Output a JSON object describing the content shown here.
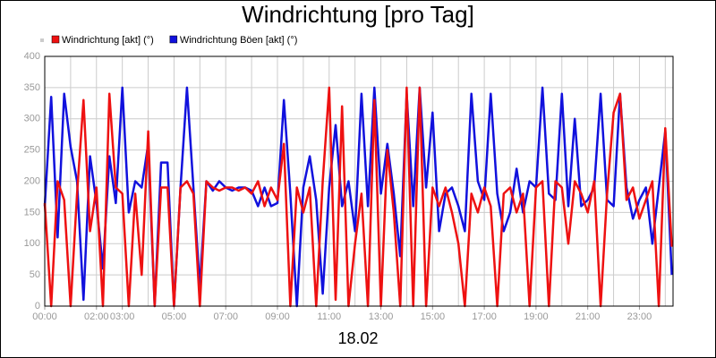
{
  "chart_data": {
    "type": "line",
    "title": "Windrichtung [pro Tag]",
    "xlabel": "18.02",
    "x": [
      0,
      0.25,
      0.5,
      0.75,
      1,
      1.25,
      1.5,
      1.75,
      2,
      2.25,
      2.5,
      2.75,
      3,
      3.25,
      3.5,
      3.75,
      4,
      4.25,
      4.5,
      4.75,
      5,
      5.25,
      5.5,
      5.75,
      6,
      6.25,
      6.5,
      6.75,
      7,
      7.25,
      7.5,
      7.75,
      8,
      8.25,
      8.5,
      8.75,
      9,
      9.25,
      9.5,
      9.75,
      10,
      10.25,
      10.5,
      10.75,
      11,
      11.25,
      11.5,
      11.75,
      12,
      12.25,
      12.5,
      12.75,
      13,
      13.25,
      13.5,
      13.75,
      14,
      14.25,
      14.5,
      14.75,
      15,
      15.25,
      15.5,
      15.75,
      16,
      16.25,
      16.5,
      16.75,
      17,
      17.25,
      17.5,
      17.75,
      18,
      18.25,
      18.5,
      18.75,
      19,
      19.25,
      19.5,
      19.75,
      20,
      20.25,
      20.5,
      20.75,
      21,
      21.25,
      21.5,
      21.75,
      22,
      22.25,
      22.5,
      22.75,
      23,
      23.25,
      23.5,
      23.75,
      24,
      24.25
    ],
    "series": [
      {
        "name": "Windrichtung [akt] (°)",
        "color": "#ee1111",
        "values": [
          165,
          0,
          200,
          170,
          0,
          180,
          330,
          120,
          190,
          0,
          340,
          190,
          180,
          0,
          180,
          50,
          280,
          0,
          190,
          190,
          0,
          190,
          200,
          180,
          0,
          200,
          190,
          185,
          190,
          190,
          185,
          190,
          180,
          200,
          160,
          190,
          170,
          260,
          0,
          190,
          150,
          190,
          0,
          200,
          350,
          10,
          320,
          0,
          100,
          180,
          0,
          330,
          0,
          250,
          150,
          0,
          350,
          0,
          350,
          0,
          190,
          160,
          190,
          150,
          100,
          0,
          180,
          150,
          190,
          160,
          0,
          180,
          190,
          150,
          180,
          0,
          190,
          200,
          0,
          200,
          190,
          100,
          200,
          180,
          150,
          200,
          0,
          180,
          310,
          340,
          170,
          190,
          140,
          170,
          200,
          0,
          285,
          95
        ]
      },
      {
        "name": "Windrichtung Böen [akt] (°)",
        "color": "#1111dd",
        "values": [
          160,
          335,
          110,
          340,
          255,
          200,
          10,
          240,
          165,
          60,
          240,
          165,
          350,
          150,
          200,
          190,
          260,
          0,
          230,
          230,
          0,
          190,
          350,
          190,
          30,
          200,
          185,
          200,
          190,
          185,
          190,
          190,
          185,
          160,
          190,
          160,
          165,
          330,
          180,
          0,
          190,
          240,
          170,
          20,
          190,
          290,
          160,
          200,
          120,
          340,
          160,
          350,
          180,
          260,
          180,
          80,
          340,
          160,
          350,
          190,
          310,
          120,
          180,
          190,
          160,
          120,
          340,
          200,
          170,
          340,
          180,
          120,
          150,
          220,
          150,
          200,
          190,
          350,
          180,
          170,
          340,
          160,
          300,
          160,
          170,
          190,
          340,
          170,
          160,
          340,
          190,
          140,
          170,
          190,
          100,
          190,
          280,
          50
        ]
      }
    ],
    "xlim": [
      0,
      24.3
    ],
    "xticks": [
      {
        "value": 0,
        "label": "00:00"
      },
      {
        "value": 2,
        "label": "02:00"
      },
      {
        "value": 3,
        "label": "03:00"
      },
      {
        "value": 5,
        "label": "05:00"
      },
      {
        "value": 7,
        "label": "07:00"
      },
      {
        "value": 9,
        "label": "09:00"
      },
      {
        "value": 11,
        "label": "11:00"
      },
      {
        "value": 13,
        "label": "13:00"
      },
      {
        "value": 15,
        "label": "15:00"
      },
      {
        "value": 17,
        "label": "17:00"
      },
      {
        "value": 19,
        "label": "19:00"
      },
      {
        "value": 21,
        "label": "21:00"
      },
      {
        "value": 23,
        "label": "23:00"
      }
    ],
    "xgrid": [
      0,
      1,
      2,
      3,
      4,
      5,
      6,
      7,
      8,
      9,
      10,
      11,
      12,
      13,
      14,
      15,
      16,
      17,
      18,
      19,
      20,
      21,
      22,
      23,
      24
    ],
    "ylim": [
      0,
      400
    ],
    "yticks": [
      0,
      50,
      100,
      150,
      200,
      250,
      300,
      350,
      400
    ],
    "grid": true
  }
}
